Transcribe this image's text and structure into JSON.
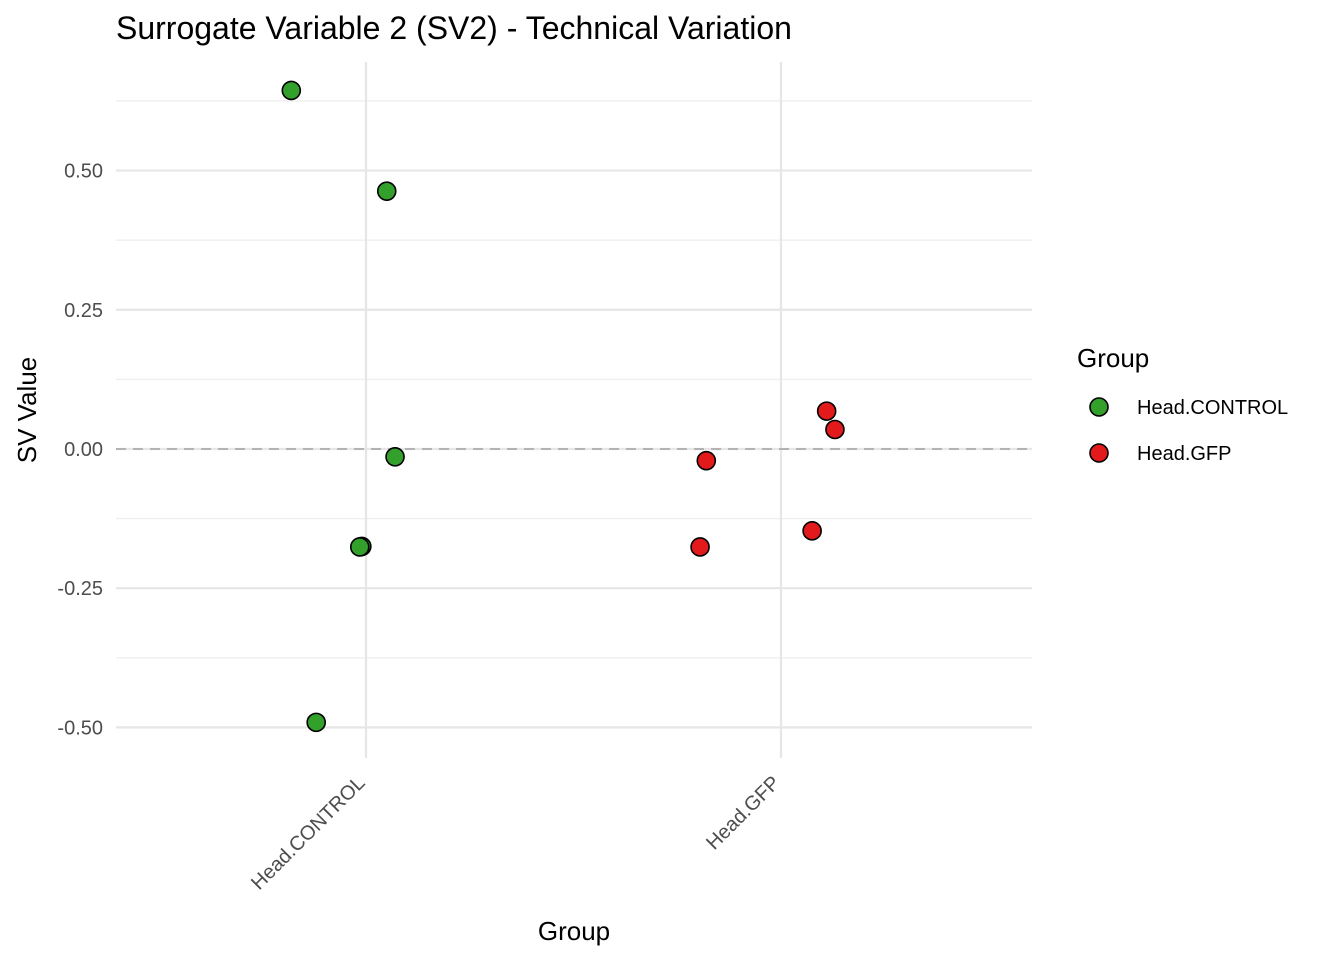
{
  "chart_data": {
    "type": "scatter",
    "title": "Surrogate Variable 2 (SV2) - Technical Variation",
    "xlabel": "Group",
    "ylabel": "SV Value",
    "categories": [
      "Head.CONTROL",
      "Head.GFP"
    ],
    "ylim": [
      -0.555,
      0.695
    ],
    "y_ticks": [
      {
        "value": -0.5,
        "label": "-0.50"
      },
      {
        "value": -0.25,
        "label": "-0.25"
      },
      {
        "value": 0.0,
        "label": "0.00"
      },
      {
        "value": 0.25,
        "label": "0.25"
      },
      {
        "value": 0.5,
        "label": "0.50"
      }
    ],
    "y_minor_ticks": [
      -0.375,
      -0.125,
      0.125,
      0.375,
      0.625
    ],
    "reference_line": {
      "y": 0,
      "style": "dashed",
      "color": "#b3b3b3"
    },
    "grid": true,
    "legend": {
      "title": "Group",
      "position": "right",
      "entries": [
        {
          "label": "Head.CONTROL",
          "color": "#33a02c"
        },
        {
          "label": "Head.GFP",
          "color": "#e31a1c"
        }
      ]
    },
    "series": [
      {
        "name": "Head.CONTROL",
        "color": "#33a02c",
        "points": [
          {
            "category": "Head.CONTROL",
            "jitter": -0.18,
            "y": 0.644
          },
          {
            "category": "Head.CONTROL",
            "jitter": 0.05,
            "y": 0.463
          },
          {
            "category": "Head.CONTROL",
            "jitter": 0.07,
            "y": -0.014
          },
          {
            "category": "Head.CONTROL",
            "jitter": -0.01,
            "y": -0.175
          },
          {
            "category": "Head.CONTROL",
            "jitter": -0.015,
            "y": -0.176
          },
          {
            "category": "Head.CONTROL",
            "jitter": -0.12,
            "y": -0.491
          }
        ]
      },
      {
        "name": "Head.GFP",
        "color": "#e31a1c",
        "points": [
          {
            "category": "Head.GFP",
            "jitter": 0.11,
            "y": 0.068
          },
          {
            "category": "Head.GFP",
            "jitter": 0.13,
            "y": 0.035
          },
          {
            "category": "Head.GFP",
            "jitter": -0.18,
            "y": -0.021
          },
          {
            "category": "Head.GFP",
            "jitter": 0.075,
            "y": -0.147
          },
          {
            "category": "Head.GFP",
            "jitter": -0.195,
            "y": -0.176
          }
        ]
      }
    ]
  }
}
